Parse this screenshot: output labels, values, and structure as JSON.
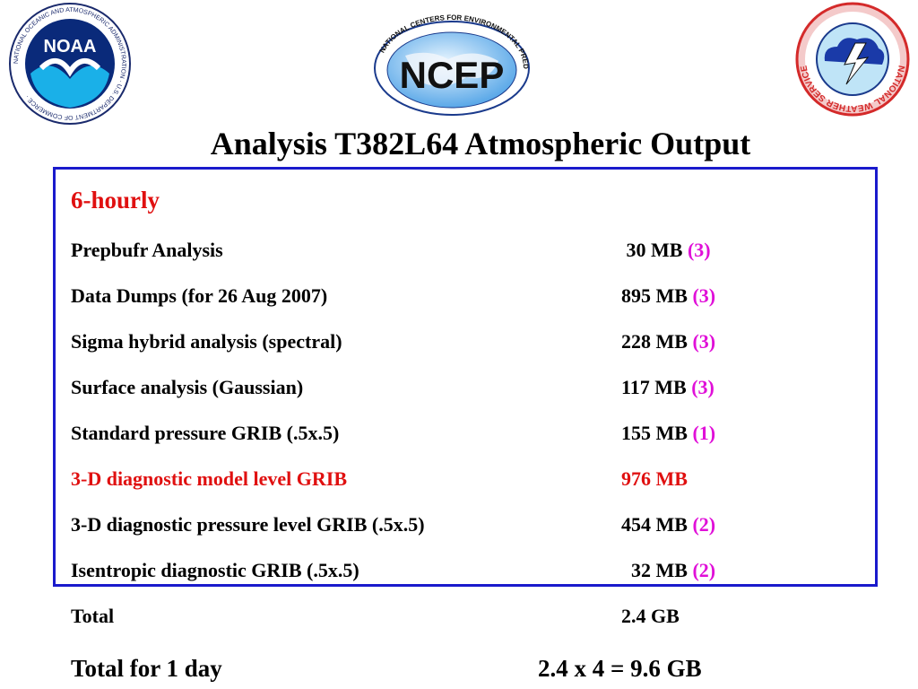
{
  "logos": {
    "noaa": {
      "text": "NOAA",
      "ring_text": "NATIONAL OCEANIC AND ATMOSPHERIC ADMINISTRATION · U.S. DEPARTMENT OF COMMERCE ·"
    },
    "ncep": {
      "text": "NCEP",
      "ring_text": "NATIONAL CENTERS FOR ENVIRONMENTAL PREDICTION"
    },
    "nws": {
      "ring_text": "NATIONAL WEATHER SERVICE"
    }
  },
  "title": "Analysis T382L64 Atmospheric Output",
  "section": "6-hourly",
  "rows": [
    {
      "label": "Prepbufr Analysis",
      "size": " 30 MB",
      "note": "(3)"
    },
    {
      "label": "Data Dumps (for 26 Aug 2007)",
      "size": "895 MB",
      "note": "(3)"
    },
    {
      "label": "Sigma hybrid analysis (spectral)",
      "size": "228 MB",
      "note": "(3)"
    },
    {
      "label": "Surface analysis (Gaussian)",
      "size": "117 MB",
      "note": "(3)"
    },
    {
      "label": "Standard pressure GRIB (.5x.5)",
      "size": "155 MB",
      "note": "(1)"
    },
    {
      "label": "3-D diagnostic model level GRIB",
      "size": "976 MB",
      "note": ""
    },
    {
      "label": "3-D diagnostic pressure level GRIB (.5x.5)",
      "size": "454 MB",
      "note": "(2)"
    },
    {
      "label": "Isentropic diagnostic GRIB (.5x.5)",
      "size": "  32 MB",
      "note": "(2)"
    }
  ],
  "total": {
    "label": "Total",
    "value": "2.4 GB"
  },
  "daily_total": {
    "label": "Total for 1 day",
    "value": "2.4 x 4 = 9.6 GB"
  },
  "colors": {
    "highlight": "#e01010",
    "note": "#e010d8",
    "box_border": "#1a1acc"
  }
}
